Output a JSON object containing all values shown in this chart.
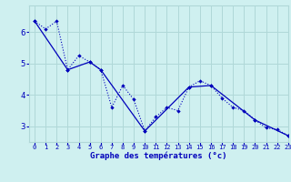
{
  "title": "Graphe des températures (°c)",
  "background_color": "#cff0f0",
  "grid_color": "#b0d8d8",
  "line_color": "#0000bb",
  "xlim": [
    -0.5,
    23
  ],
  "ylim": [
    2.5,
    6.85
  ],
  "xticks": [
    0,
    1,
    2,
    3,
    4,
    5,
    6,
    7,
    8,
    9,
    10,
    11,
    12,
    13,
    14,
    15,
    16,
    17,
    18,
    19,
    20,
    21,
    22,
    23
  ],
  "yticks": [
    3,
    4,
    5,
    6
  ],
  "series1_x": [
    0,
    1,
    2,
    3,
    4,
    5,
    6,
    7,
    8,
    9,
    10,
    11,
    12,
    13,
    14,
    15,
    16,
    17,
    18,
    19,
    20,
    21,
    22,
    23
  ],
  "series1_y": [
    6.35,
    6.1,
    6.35,
    4.8,
    5.25,
    5.05,
    4.8,
    3.6,
    4.3,
    3.85,
    2.85,
    3.3,
    3.6,
    3.5,
    4.25,
    4.45,
    4.3,
    3.9,
    3.6,
    3.5,
    3.2,
    2.95,
    2.9,
    2.7
  ],
  "series2_x": [
    0,
    3,
    5,
    6,
    10,
    14,
    16,
    20,
    23
  ],
  "series2_y": [
    6.35,
    4.8,
    5.05,
    4.8,
    2.85,
    4.25,
    4.3,
    3.2,
    2.7
  ]
}
